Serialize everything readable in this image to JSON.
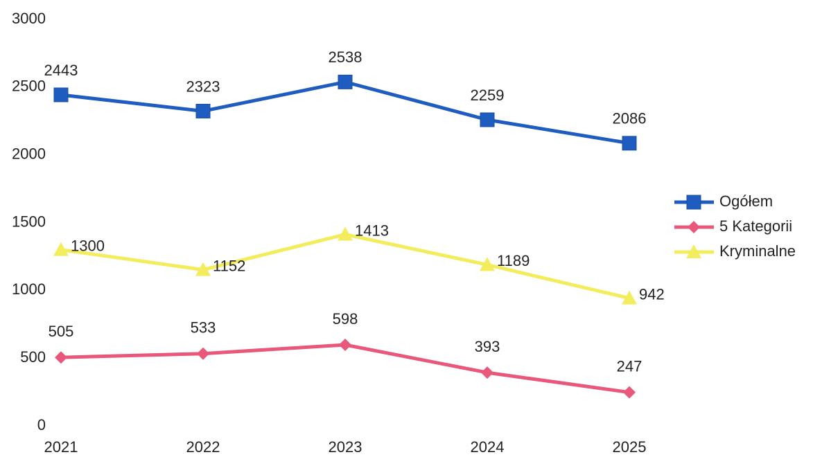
{
  "chart_data": {
    "type": "line",
    "categories": [
      "2021",
      "2022",
      "2023",
      "2024",
      "2025"
    ],
    "series": [
      {
        "name": "Ogółem",
        "color": "#1f5cc0",
        "marker": "square",
        "values": [
          2443,
          2323,
          2538,
          2259,
          2086
        ]
      },
      {
        "name": "5 Kategorii",
        "color": "#e8587a",
        "marker": "diamond",
        "values": [
          505,
          533,
          598,
          393,
          247
        ]
      },
      {
        "name": "Kryminalne",
        "color": "#f3ec5c",
        "marker": "triangle",
        "values": [
          1300,
          1152,
          1413,
          1189,
          942
        ]
      }
    ],
    "ylim": [
      0,
      3000
    ],
    "yticks": [
      0,
      500,
      1000,
      1500,
      2000,
      2500,
      3000
    ],
    "grid": false,
    "legend": "right"
  }
}
